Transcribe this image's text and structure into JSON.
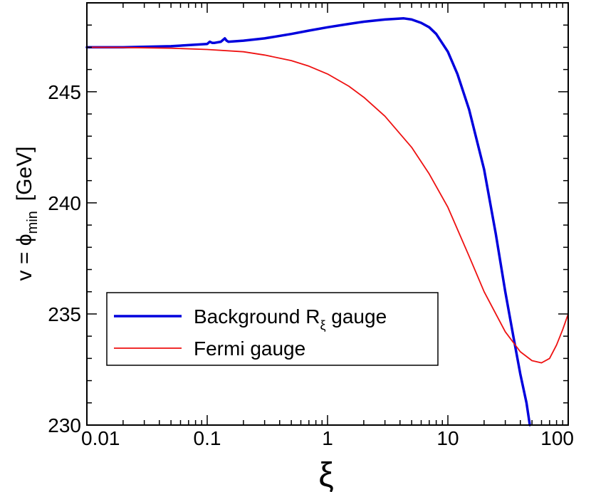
{
  "chart_data": {
    "type": "line",
    "xlabel": "ξ",
    "ylabel": {
      "main": "v = ϕ",
      "subscript": "min",
      "unit": "[GeV]"
    },
    "xscale": "log",
    "xlim": [
      0.01,
      100
    ],
    "ylim": [
      230,
      249
    ],
    "xticks": [
      {
        "value": 0.01,
        "label": "0.01"
      },
      {
        "value": 0.1,
        "label": "0.1"
      },
      {
        "value": 1,
        "label": "1"
      },
      {
        "value": 10,
        "label": "10"
      },
      {
        "value": 100,
        "label": "100"
      }
    ],
    "yticks": [
      {
        "value": 230,
        "label": "230"
      },
      {
        "value": 235,
        "label": "235"
      },
      {
        "value": 240,
        "label": "240"
      },
      {
        "value": 245,
        "label": "245"
      }
    ],
    "grid": false,
    "legend_position": "lower-left",
    "series": [
      {
        "name": "Background R",
        "name_subscript": "ξ",
        "name_suffix": " gauge",
        "color": "#0000dd",
        "x": [
          0.01,
          0.02,
          0.05,
          0.1,
          0.105,
          0.11,
          0.115,
          0.13,
          0.14,
          0.145,
          0.15,
          0.2,
          0.3,
          0.5,
          0.7,
          1.0,
          1.5,
          2.0,
          3.0,
          4.3,
          5.0,
          6.0,
          7.0,
          8.0,
          10,
          12,
          15,
          20,
          25,
          30,
          35,
          40,
          45,
          48
        ],
        "y": [
          247.0,
          247.0,
          247.05,
          247.15,
          247.25,
          247.2,
          247.2,
          247.25,
          247.4,
          247.3,
          247.25,
          247.3,
          247.4,
          247.6,
          247.75,
          247.9,
          248.05,
          248.15,
          248.25,
          248.3,
          248.25,
          248.1,
          247.9,
          247.6,
          246.8,
          245.8,
          244.2,
          241.5,
          238.6,
          236.0,
          234.0,
          232.3,
          231.0,
          230.0
        ]
      },
      {
        "name": "Fermi gauge",
        "color": "#ee1111",
        "x": [
          0.01,
          0.02,
          0.05,
          0.1,
          0.2,
          0.3,
          0.5,
          0.7,
          1.0,
          1.5,
          2.0,
          3.0,
          5.0,
          7.0,
          10,
          15,
          20,
          30,
          40,
          50,
          60,
          70,
          80,
          90,
          100
        ],
        "y": [
          247.0,
          246.99,
          246.96,
          246.9,
          246.8,
          246.65,
          246.4,
          246.15,
          245.8,
          245.25,
          244.75,
          243.9,
          242.5,
          241.3,
          239.8,
          237.6,
          236.0,
          234.2,
          233.3,
          232.9,
          232.8,
          233.0,
          233.6,
          234.3,
          235.0
        ]
      }
    ]
  }
}
